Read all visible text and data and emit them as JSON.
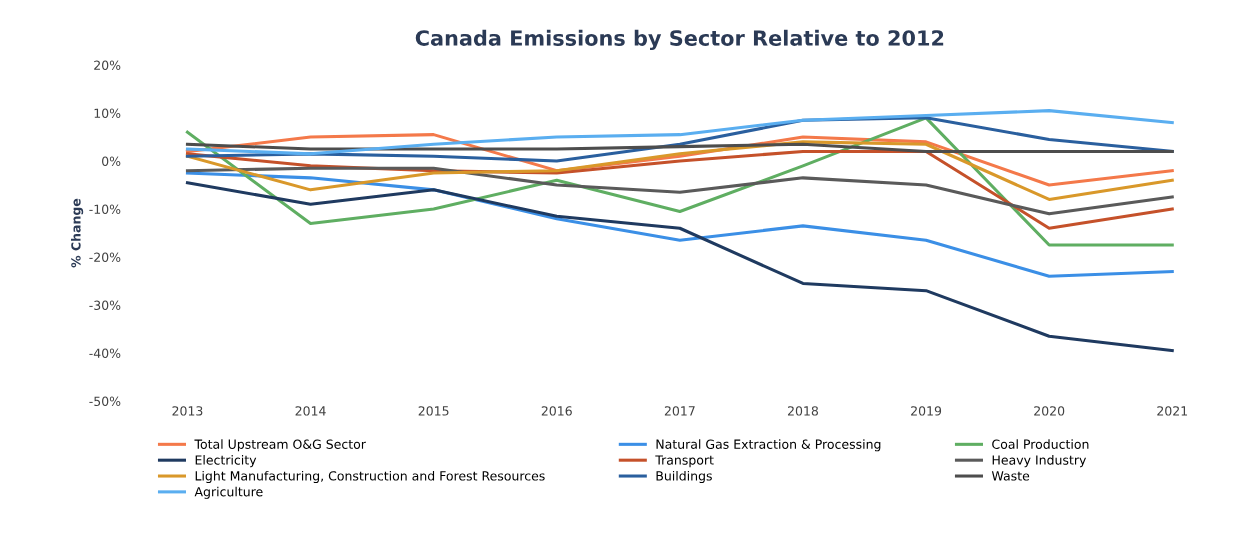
{
  "chart_data": {
    "type": "line",
    "title": "Canada Emissions by Sector Relative to 2012",
    "ylabel": "% Change",
    "categories": [
      "2013",
      "2014",
      "2015",
      "2016",
      "2017",
      "2018",
      "2019",
      "2020",
      "2021"
    ],
    "ylim": [
      -50,
      20
    ],
    "yticks": [
      {
        "value": -50,
        "label": "-50%"
      },
      {
        "value": -40,
        "label": "-40%"
      },
      {
        "value": -30,
        "label": "-30%"
      },
      {
        "value": -20,
        "label": "-20%"
      },
      {
        "value": -10,
        "label": "-10%"
      },
      {
        "value": 0,
        "label": "0%"
      },
      {
        "value": 10,
        "label": "10%"
      },
      {
        "value": 20,
        "label": "20%"
      }
    ],
    "grid": false,
    "legend": "bottom",
    "marker": "none",
    "line_style": "solid",
    "series": [
      {
        "name": "Total Upstream O&G Sector",
        "color": "#f4794a",
        "values": [
          2,
          5,
          5.5,
          -2,
          1,
          5,
          4,
          -5,
          -2
        ]
      },
      {
        "name": "Natural Gas Extraction & Processing",
        "color": "#3b8fe6",
        "values": [
          -2.5,
          -3.5,
          -6,
          -12,
          -16.5,
          -13.5,
          -16.5,
          -24,
          -23
        ]
      },
      {
        "name": "Coal Production",
        "color": "#5fae62",
        "values": [
          6,
          -13,
          -10,
          -4,
          -10.5,
          -1,
          9,
          -17.5,
          -17.5
        ]
      },
      {
        "name": "Electricity",
        "color": "#1f3a60",
        "values": [
          -4.5,
          -9,
          -6,
          -11.5,
          -14,
          -25.5,
          -27,
          -36.5,
          -39.5
        ]
      },
      {
        "name": "Transport",
        "color": "#c5512a",
        "values": [
          1.5,
          -1,
          -2,
          -2.5,
          0,
          2,
          2,
          -14,
          -10
        ]
      },
      {
        "name": "Heavy Industry",
        "color": "#5a5a5a",
        "values": [
          -2,
          -1.5,
          -1.5,
          -5,
          -6.5,
          -3.5,
          -5,
          -11,
          -7.5
        ]
      },
      {
        "name": "Light Manufacturing, Construction and Forest Resources",
        "color": "#d9982a",
        "values": [
          1,
          -6,
          -2.5,
          -2,
          1.5,
          4,
          3.5,
          -8,
          -4
        ]
      },
      {
        "name": "Buildings",
        "color": "#2a5f9e",
        "values": [
          1,
          1.5,
          1,
          0,
          3.5,
          8.5,
          9,
          4.5,
          2
        ]
      },
      {
        "name": "Waste",
        "color": "#4d4d4d",
        "values": [
          3.5,
          2.5,
          2.5,
          2.5,
          3,
          3.5,
          2,
          2,
          2
        ]
      },
      {
        "name": "Agriculture",
        "color": "#5aaef0",
        "values": [
          2.5,
          1.5,
          3.5,
          5,
          5.5,
          8.5,
          9.5,
          10.5,
          8
        ]
      }
    ]
  }
}
